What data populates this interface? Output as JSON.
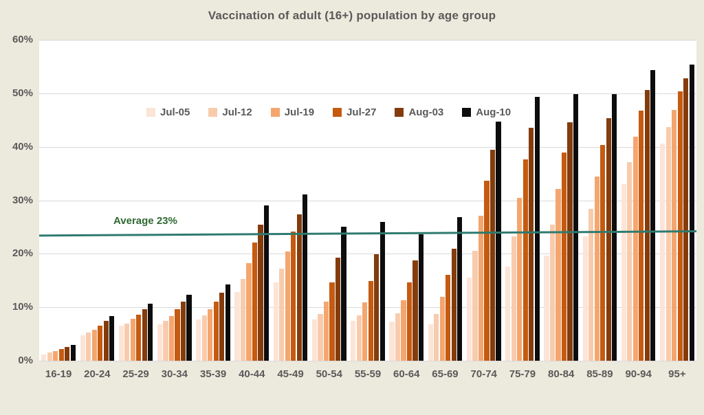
{
  "title": "Vaccination of adult (16+) population by age group",
  "colors": {
    "background": "#ece9dd",
    "plot_background": "#ffffff",
    "gridline": "#d9d9d9",
    "axis_text": "#595959",
    "average_line": "#2e7a6e",
    "average_label_text": "#2e6830"
  },
  "chart_data": {
    "type": "bar",
    "title": "Vaccination of adult (16+) population by age group",
    "xlabel": "",
    "ylabel": "",
    "grid": true,
    "legend_position": "inside-top-left",
    "y_axis": {
      "min": 0,
      "max": 60,
      "step": 10,
      "tick_labels": [
        "0%",
        "10%",
        "20%",
        "30%",
        "40%",
        "50%",
        "60%"
      ]
    },
    "categories": [
      "16-19",
      "20-24",
      "25-29",
      "30-34",
      "35-39",
      "40-44",
      "45-49",
      "50-54",
      "55-59",
      "60-64",
      "65-69",
      "70-74",
      "75-79",
      "80-84",
      "85-89",
      "90-94",
      "95+"
    ],
    "series": [
      {
        "name": "Jul-05",
        "color": "#fce4d6",
        "values": [
          1.2,
          4.8,
          6.5,
          6.8,
          7.7,
          12.8,
          14.6,
          7.7,
          7.4,
          7.3,
          6.8,
          15.6,
          17.6,
          19.6,
          23.2,
          33.0,
          40.6
        ]
      },
      {
        "name": "Jul-12",
        "color": "#f8cbad",
        "values": [
          1.5,
          5.3,
          7.0,
          7.4,
          8.5,
          15.3,
          17.2,
          8.8,
          8.5,
          8.9,
          8.7,
          20.6,
          23.2,
          25.4,
          28.4,
          37.1,
          43.7
        ]
      },
      {
        "name": "Jul-19",
        "color": "#f4a66e",
        "values": [
          1.8,
          5.8,
          7.9,
          8.4,
          9.6,
          18.3,
          20.4,
          11.0,
          10.9,
          11.3,
          11.9,
          27.1,
          30.4,
          32.1,
          34.4,
          41.9,
          46.9
        ]
      },
      {
        "name": "Jul-27",
        "color": "#c55a11",
        "values": [
          2.2,
          6.6,
          8.6,
          9.6,
          11.0,
          22.1,
          24.1,
          14.7,
          14.9,
          14.6,
          16.1,
          33.7,
          37.6,
          38.9,
          40.3,
          46.8,
          50.4
        ]
      },
      {
        "name": "Aug-03",
        "color": "#843c0c",
        "values": [
          2.6,
          7.4,
          9.6,
          11.0,
          12.7,
          25.4,
          27.4,
          19.3,
          19.9,
          18.7,
          21.0,
          39.4,
          43.6,
          44.6,
          45.3,
          50.6,
          52.8
        ]
      },
      {
        "name": "Aug-10",
        "color": "#0d0d0d",
        "values": [
          3.0,
          8.4,
          10.7,
          12.3,
          14.3,
          29.1,
          31.1,
          25.0,
          26.0,
          23.6,
          26.9,
          44.7,
          49.3,
          49.8,
          49.9,
          54.3,
          55.4
        ]
      }
    ],
    "average_line": {
      "label": "Average 23%",
      "start_value": 23.4,
      "end_value": 24.2
    }
  }
}
